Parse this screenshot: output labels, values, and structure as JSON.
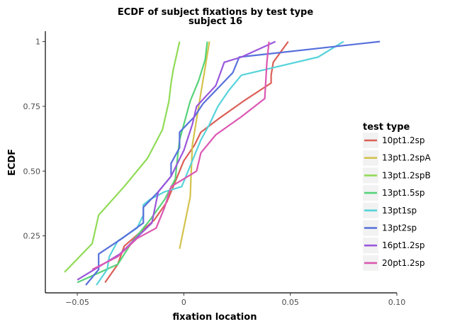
{
  "chart_data": {
    "type": "line",
    "title": "ECDF of subject fixations by test type",
    "subtitle": "subject 16",
    "xlabel": "fixation location",
    "ylabel": "ECDF",
    "xlim": [
      -0.065,
      0.1
    ],
    "ylim": [
      0.03,
      1.04
    ],
    "x_ticks": [
      -0.05,
      0,
      0.05,
      0.1
    ],
    "x_tick_labels": [
      "−0.05",
      "0",
      "0.05",
      "0.10"
    ],
    "y_ticks": [
      0.25,
      0.5,
      0.75,
      1.0
    ],
    "y_tick_labels": [
      "0.25",
      "0.50",
      "0.75",
      "1"
    ],
    "grid": false,
    "legend_title": "test type",
    "legend_position": "right",
    "series": [
      {
        "name": "10pt1.2sp",
        "color": "#db5f57",
        "x": [
          -0.037,
          -0.031,
          -0.028,
          -0.014,
          -0.008,
          -0.004,
          0.0,
          0.005,
          0.008,
          0.016,
          0.028,
          0.041,
          0.041,
          0.042,
          0.049
        ],
        "y": [
          0.07,
          0.14,
          0.21,
          0.31,
          0.38,
          0.46,
          0.54,
          0.6,
          0.65,
          0.7,
          0.77,
          0.84,
          0.87,
          0.92,
          1.0
        ]
      },
      {
        "name": "13pt1.2spA",
        "color": "#d3c34c",
        "x": [
          -0.002,
          0.003,
          0.004,
          0.006,
          0.008,
          0.01,
          0.012
        ],
        "y": [
          0.2,
          0.4,
          0.6,
          0.7,
          0.8,
          0.9,
          1.0
        ]
      },
      {
        "name": "13pt1.2spB",
        "color": "#91db57",
        "x": [
          -0.056,
          -0.043,
          -0.04,
          -0.028,
          -0.017,
          -0.01,
          -0.007,
          -0.006,
          -0.005,
          -0.002
        ],
        "y": [
          0.11,
          0.22,
          0.33,
          0.44,
          0.55,
          0.66,
          0.77,
          0.84,
          0.89,
          1.0
        ]
      },
      {
        "name": "13pt1.5sp",
        "color": "#57d37a",
        "x": [
          -0.05,
          -0.031,
          -0.024,
          -0.02,
          -0.016,
          -0.009,
          -0.004,
          -0.003,
          -0.002,
          0.003,
          0.007,
          0.01,
          0.011
        ],
        "y": [
          0.07,
          0.14,
          0.23,
          0.27,
          0.31,
          0.39,
          0.47,
          0.55,
          0.62,
          0.77,
          0.85,
          0.93,
          1.0
        ]
      },
      {
        "name": "13pt1sp",
        "color": "#57d3db",
        "x": [
          -0.041,
          -0.036,
          -0.035,
          -0.031,
          -0.022,
          -0.019,
          -0.019,
          -0.016,
          -0.009,
          -0.001,
          0.002,
          0.008,
          0.012,
          0.016,
          0.021,
          0.027,
          0.063,
          0.075
        ],
        "y": [
          0.06,
          0.12,
          0.17,
          0.23,
          0.28,
          0.33,
          0.37,
          0.39,
          0.42,
          0.44,
          0.5,
          0.62,
          0.68,
          0.75,
          0.81,
          0.87,
          0.94,
          1.0
        ]
      },
      {
        "name": "13pt2sp",
        "color": "#5770db",
        "x": [
          -0.046,
          -0.04,
          -0.04,
          -0.029,
          -0.019,
          -0.019,
          -0.012,
          -0.006,
          -0.006,
          -0.002,
          -0.002,
          0.005,
          0.009,
          0.023,
          0.026,
          0.092
        ],
        "y": [
          0.06,
          0.12,
          0.18,
          0.24,
          0.3,
          0.36,
          0.42,
          0.48,
          0.53,
          0.59,
          0.65,
          0.71,
          0.76,
          0.88,
          0.94,
          1.0
        ]
      },
      {
        "name": "16pt1.2sp",
        "color": "#9a57db",
        "x": [
          -0.05,
          -0.03,
          -0.015,
          -0.012,
          -0.006,
          0.0,
          0.004,
          0.006,
          0.015,
          0.019,
          0.027,
          0.043
        ],
        "y": [
          0.08,
          0.18,
          0.3,
          0.42,
          0.48,
          0.58,
          0.68,
          0.75,
          0.83,
          0.92,
          0.94,
          1.0
        ]
      },
      {
        "name": "20pt1.2sp",
        "color": "#db57b2",
        "x": [
          -0.043,
          -0.031,
          -0.022,
          -0.013,
          -0.009,
          -0.006,
          0.006,
          0.008,
          0.015,
          0.027,
          0.038,
          0.039,
          0.04
        ],
        "y": [
          0.12,
          0.17,
          0.24,
          0.28,
          0.36,
          0.44,
          0.5,
          0.57,
          0.64,
          0.71,
          0.78,
          0.92,
          1.0
        ]
      }
    ]
  }
}
